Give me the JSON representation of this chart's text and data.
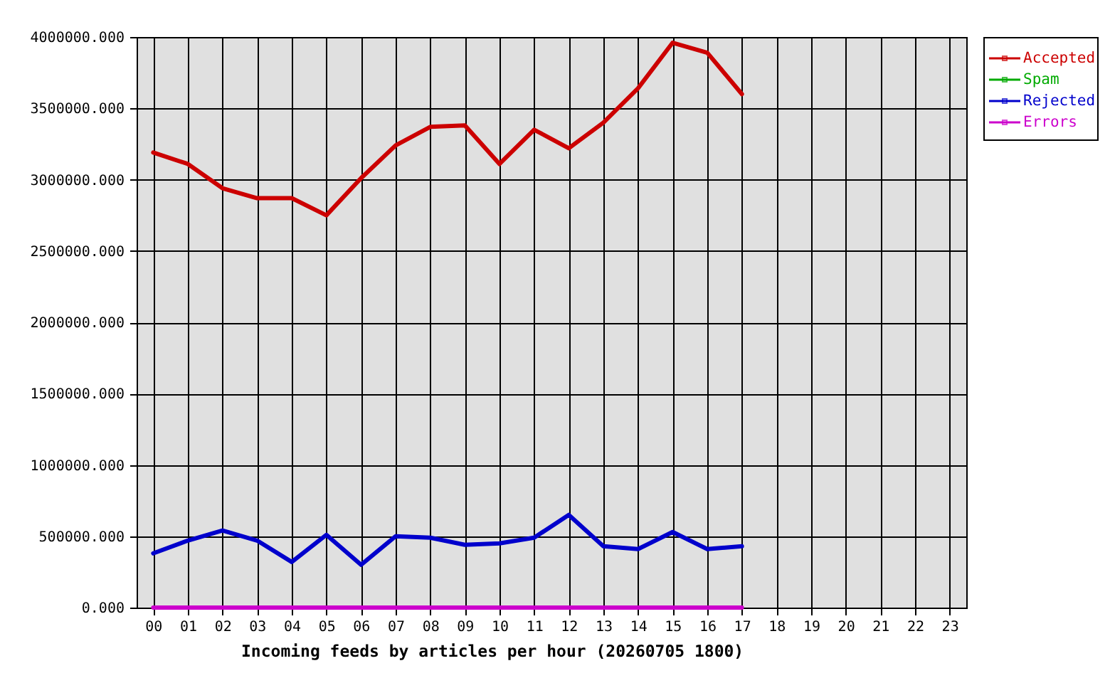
{
  "chart_data": {
    "type": "line",
    "xlabel": "Incoming feeds by articles per hour (20260705 1800)",
    "categories": [
      "00",
      "01",
      "02",
      "03",
      "04",
      "05",
      "06",
      "07",
      "08",
      "09",
      "10",
      "11",
      "12",
      "13",
      "14",
      "15",
      "16",
      "17",
      "18",
      "19",
      "20",
      "21",
      "22",
      "23"
    ],
    "series": [
      {
        "name": "Accepted",
        "color": "#cc0000",
        "values": [
          3190000,
          3110000,
          2940000,
          2870000,
          2870000,
          2750000,
          3010000,
          3240000,
          3370000,
          3380000,
          3110000,
          3350000,
          3220000,
          3400000,
          3640000,
          3960000,
          3890000,
          3600000,
          null,
          null,
          null,
          null,
          null,
          null
        ]
      },
      {
        "name": "Spam",
        "color": "#00aa00",
        "values": [
          null,
          null,
          null,
          null,
          null,
          null,
          null,
          null,
          null,
          null,
          null,
          null,
          null,
          null,
          null,
          null,
          null,
          null,
          null,
          null,
          null,
          null,
          null,
          null
        ]
      },
      {
        "name": "Rejected",
        "color": "#0000cc",
        "values": [
          380000,
          470000,
          540000,
          470000,
          320000,
          510000,
          300000,
          500000,
          490000,
          440000,
          450000,
          490000,
          650000,
          430000,
          410000,
          530000,
          410000,
          430000,
          null,
          null,
          null,
          null,
          null,
          null
        ]
      },
      {
        "name": "Errors",
        "color": "#cc00cc",
        "values": [
          0,
          0,
          0,
          0,
          0,
          0,
          0,
          0,
          0,
          0,
          0,
          0,
          0,
          0,
          0,
          0,
          0,
          0,
          null,
          null,
          null,
          null,
          null,
          null
        ]
      }
    ],
    "ylim": [
      0,
      4000000
    ],
    "yticks": [
      {
        "value": 0,
        "label": "0.000"
      },
      {
        "value": 500000,
        "label": "500000.000"
      },
      {
        "value": 1000000,
        "label": "1000000.000"
      },
      {
        "value": 1500000,
        "label": "1500000.000"
      },
      {
        "value": 2000000,
        "label": "2000000.000"
      },
      {
        "value": 2500000,
        "label": "2500000.000"
      },
      {
        "value": 3000000,
        "label": "3000000.000"
      },
      {
        "value": 3500000,
        "label": "3500000.000"
      },
      {
        "value": 4000000,
        "label": "4000000.000"
      }
    ],
    "grid": true,
    "legend": "top right"
  }
}
